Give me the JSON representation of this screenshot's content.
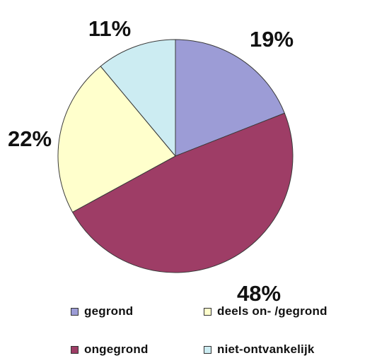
{
  "chart_data": {
    "type": "pie",
    "title": "",
    "start_angle_deg": 0,
    "direction": "clockwise",
    "slices": [
      {
        "name": "gegrond",
        "value": 19,
        "label": "19%",
        "color": "#9C9CD6"
      },
      {
        "name": "ongegrond",
        "value": 48,
        "label": "48%",
        "color": "#9E3D66"
      },
      {
        "name": "deels on- /gegrond",
        "value": 22,
        "label": "22%",
        "color": "#FFFFCC"
      },
      {
        "name": "niet-ontvankelijk",
        "value": 11,
        "label": "11%",
        "color": "#CCECF2"
      }
    ],
    "legend": {
      "placement": "bottom",
      "entries": [
        {
          "label": "gegrond",
          "color": "#9C9CD6"
        },
        {
          "label": "deels on- /gegrond",
          "color": "#FFFFCC"
        },
        {
          "label": "ongegrond",
          "color": "#9E3D66"
        },
        {
          "label": "niet-ontvankelijk",
          "color": "#CCECF2"
        }
      ]
    }
  }
}
